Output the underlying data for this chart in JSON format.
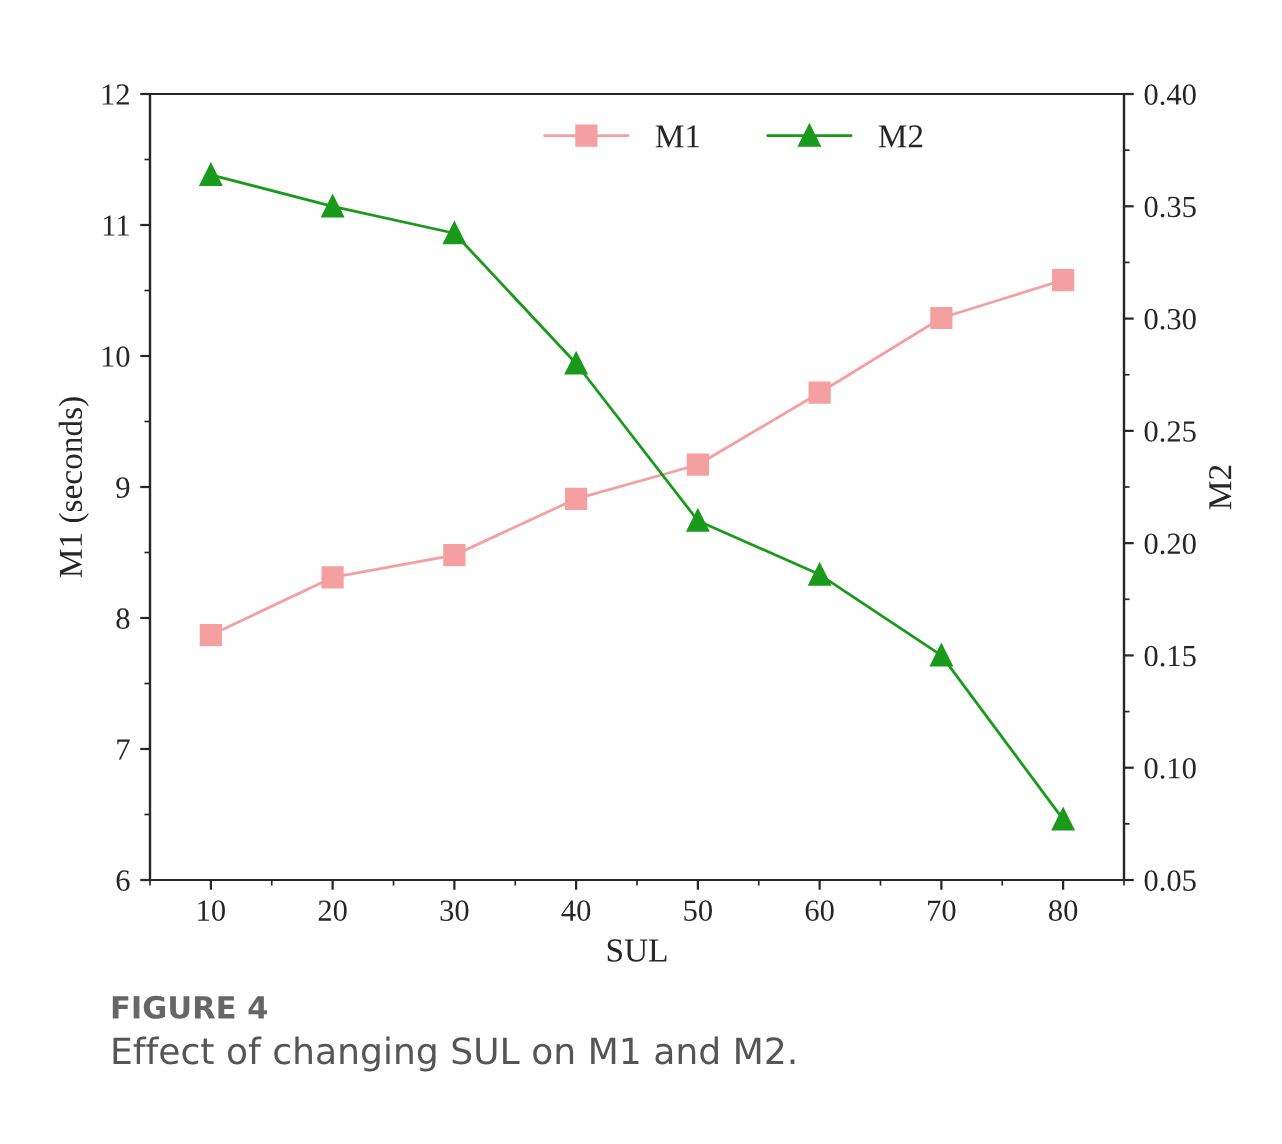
{
  "chart_data": {
    "type": "line",
    "xlabel": "SUL",
    "ylabel": "M1 (seconds)",
    "y2label": "M2",
    "x": [
      10,
      20,
      30,
      40,
      50,
      60,
      70,
      80
    ],
    "series": [
      {
        "name": "M1",
        "color": "#f4a0a0",
        "values": [
          7.87,
          8.31,
          8.48,
          8.91,
          9.17,
          9.72,
          10.29,
          10.58
        ],
        "marker": "square"
      },
      {
        "name": "M2",
        "color": "#1a9a1a",
        "values": [
          0.364,
          0.35,
          0.338,
          0.28,
          0.21,
          0.186,
          0.15,
          0.077
        ],
        "marker": "triangle",
        "axis": "y2"
      }
    ],
    "xlim": [
      5,
      85
    ],
    "xticks": [
      10,
      20,
      30,
      40,
      50,
      60,
      70,
      80
    ],
    "ylim": [
      6,
      12
    ],
    "yticks": [
      6,
      7,
      8,
      9,
      10,
      11,
      12
    ],
    "y2lim": [
      0.05,
      0.4
    ],
    "y2ticks": [
      {
        "value": 0.05,
        "label": "0.05"
      },
      {
        "value": 0.1,
        "label": "0.10"
      },
      {
        "value": 0.15,
        "label": "0.15"
      },
      {
        "value": 0.2,
        "label": "0.20"
      },
      {
        "value": 0.25,
        "label": "0.25"
      },
      {
        "value": 0.3,
        "label": "0.30"
      },
      {
        "value": 0.35,
        "label": "0.35"
      },
      {
        "value": 0.4,
        "label": "0.40"
      }
    ],
    "legend": "top",
    "grid": false,
    "annotations": [
      "FIGURE 4",
      "Effect of changing SUL on M1 and M2."
    ]
  }
}
